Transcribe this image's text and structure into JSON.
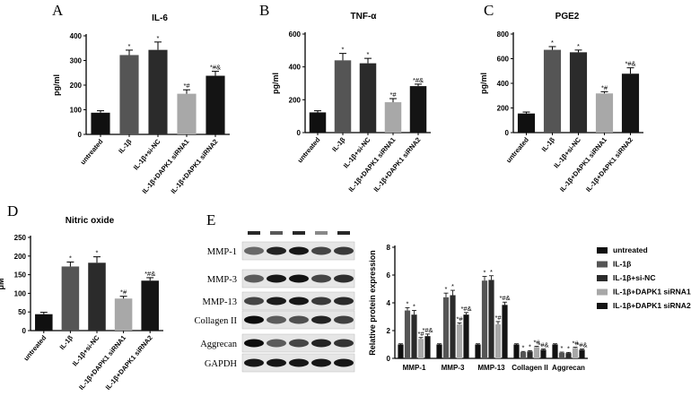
{
  "colors": {
    "untreated": "#101010",
    "il1b": "#555555",
    "sinc": "#2b2b2b",
    "si1": "#a8a8a8",
    "si2": "#141414"
  },
  "categories": [
    "untreated",
    "IL-1β",
    "IL-1β+si-NC",
    "IL-1β+DAPK1 siRNA1",
    "IL-1β+DAPK1 siRNA2"
  ],
  "chart_data": [
    {
      "panel": "A",
      "type": "bar",
      "title": "IL-6",
      "ylabel": "pg/ml",
      "ylim": [
        0,
        400
      ],
      "yticks": [
        0,
        100,
        200,
        300,
        400
      ],
      "categories": [
        "untreated",
        "IL-1β",
        "IL-1β+si-NC",
        "IL-1β+DAPK1 siRNA1",
        "IL-1β+DAPK1 siRNA2"
      ],
      "values": [
        88,
        322,
        343,
        165,
        238
      ],
      "errors": [
        8,
        20,
        32,
        16,
        18
      ],
      "annotations": [
        "",
        "*",
        "*",
        "*#",
        "*#&"
      ]
    },
    {
      "panel": "B",
      "type": "bar",
      "title": "TNF-α",
      "ylabel": "pg/ml",
      "ylim": [
        0,
        600
      ],
      "yticks": [
        0,
        200,
        400,
        600
      ],
      "categories": [
        "untreated",
        "IL-1β",
        "IL-1β+si-NC",
        "IL-1β+DAPK1 siRNA1",
        "IL-1β+DAPK1 siRNA2"
      ],
      "values": [
        123,
        440,
        422,
        185,
        283
      ],
      "errors": [
        10,
        42,
        30,
        22,
        12
      ],
      "annotations": [
        "",
        "*",
        "*",
        "*#",
        "*#&"
      ]
    },
    {
      "panel": "C",
      "type": "bar",
      "title": "PGE2",
      "ylabel": "pg/ml",
      "ylim": [
        0,
        800
      ],
      "yticks": [
        0,
        200,
        400,
        600,
        800
      ],
      "categories": [
        "untreated",
        "IL-1β",
        "IL-1β+si-NC",
        "IL-1β+DAPK1 siRNA1",
        "IL-1β+DAPK1 siRNA2"
      ],
      "values": [
        155,
        672,
        652,
        318,
        478
      ],
      "errors": [
        12,
        26,
        18,
        14,
        48
      ],
      "annotations": [
        "",
        "*",
        "*",
        "*#",
        "*#&"
      ]
    },
    {
      "panel": "D",
      "type": "bar",
      "title": "Nitric oxide",
      "ylabel": "μM",
      "ylim": [
        0,
        250
      ],
      "yticks": [
        0,
        50,
        100,
        150,
        200,
        250
      ],
      "categories": [
        "untreated",
        "IL-1β",
        "IL-1β+si-NC",
        "IL-1β+DAPK1 siRNA1",
        "IL-1β+DAPK1 siRNA2"
      ],
      "values": [
        44,
        172,
        182,
        86,
        134
      ],
      "errors": [
        5,
        12,
        16,
        6,
        8
      ],
      "annotations": [
        "",
        "*",
        "*",
        "*#",
        "*#&"
      ]
    },
    {
      "panel": "E",
      "type": "bar",
      "ylabel": "Relative protein expression",
      "ylim": [
        0,
        8
      ],
      "yticks": [
        0,
        2,
        4,
        6,
        8
      ],
      "categories": [
        "MMP-1",
        "MMP-3",
        "MMP-13",
        "Collagen II",
        "Aggrecan"
      ],
      "series": [
        {
          "name": "untreated",
          "values": [
            1.0,
            1.0,
            1.0,
            1.0,
            1.0
          ]
        },
        {
          "name": "IL-1β",
          "values": [
            3.45,
            4.4,
            5.6,
            0.45,
            0.4
          ]
        },
        {
          "name": "IL-1β+si-NC",
          "values": [
            3.15,
            4.55,
            5.65,
            0.5,
            0.38
          ]
        },
        {
          "name": "IL-1β+DAPK1 siRNA1",
          "values": [
            1.4,
            2.45,
            2.45,
            0.82,
            0.75
          ]
        },
        {
          "name": "IL-1β+DAPK1 siRNA2",
          "values": [
            1.6,
            3.15,
            3.85,
            0.62,
            0.62
          ]
        }
      ],
      "errors": [
        [
          0.05,
          0.05,
          0.05,
          0.05,
          0.05
        ],
        [
          0.2,
          0.3,
          0.3,
          0.05,
          0.05
        ],
        [
          0.3,
          0.35,
          0.3,
          0.06,
          0.05
        ],
        [
          0.1,
          0.1,
          0.2,
          0.05,
          0.05
        ],
        [
          0.15,
          0.15,
          0.2,
          0.05,
          0.05
        ]
      ],
      "annotations": [
        [
          "",
          "",
          "",
          "",
          ""
        ],
        [
          "*",
          "*",
          "*",
          "*",
          "*"
        ],
        [
          "*",
          "*",
          "*",
          "*",
          "*"
        ],
        [
          "*#",
          "*#",
          "*#",
          "*#",
          "*#"
        ],
        [
          "*#&",
          "*#&",
          "*#&",
          "*#&",
          "*#&"
        ]
      ],
      "legend": "right"
    }
  ],
  "panels_labels": [
    "A",
    "B",
    "C",
    "D",
    "E"
  ],
  "blot_labels": [
    "MMP-1",
    "MMP-3",
    "MMP-13",
    "Collagen II",
    "Aggrecan",
    "GAPDH"
  ],
  "blot_intensity": [
    [
      0.55,
      0.85,
      0.9,
      0.7,
      0.75
    ],
    [
      0.6,
      0.9,
      0.92,
      0.7,
      0.8
    ],
    [
      0.7,
      0.88,
      0.9,
      0.75,
      0.82
    ],
    [
      0.95,
      0.6,
      0.65,
      0.85,
      0.72
    ],
    [
      0.95,
      0.6,
      0.7,
      0.85,
      0.78
    ],
    [
      0.9,
      0.9,
      0.9,
      0.9,
      0.9
    ]
  ],
  "top_marks": [
    0.9,
    0.7,
    0.9,
    0.5,
    0.9
  ]
}
